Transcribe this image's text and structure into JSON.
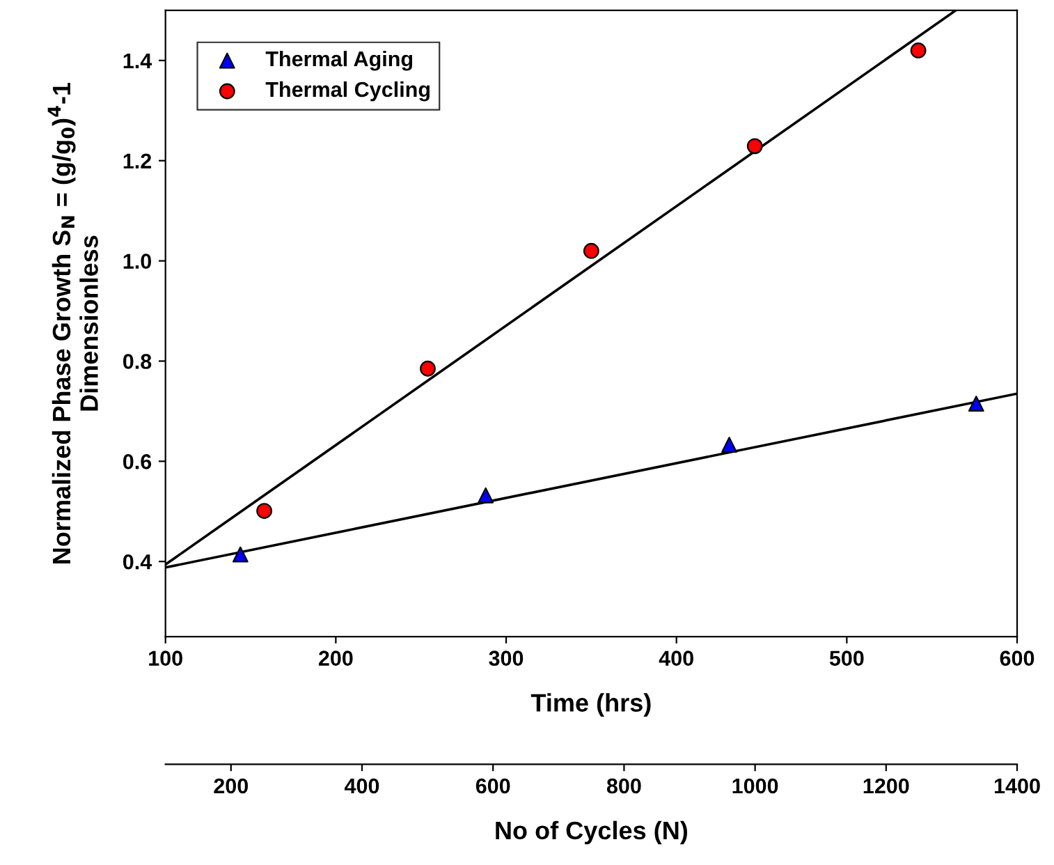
{
  "chart_data": {
    "type": "scatter",
    "xlabel": "Time (hrs)",
    "ylabel": "Normalized Phase Growth S$_{N}$ = (g/g$_{0}$)$^{4}$-1\nDimensionless",
    "x2label": "No of Cycles (N)",
    "xlim": [
      100,
      600
    ],
    "xticks": [
      100,
      200,
      300,
      400,
      500,
      600
    ],
    "ylim": [
      0.25,
      1.5
    ],
    "yticks": [
      {
        "value": 0.4,
        "label": "0.4"
      },
      {
        "value": 0.6,
        "label": "0.6"
      },
      {
        "value": 0.8,
        "label": "0.8"
      },
      {
        "value": 1.0,
        "label": "1.0"
      },
      {
        "value": 1.2,
        "label": "1.2"
      },
      {
        "value": 1.4,
        "label": "1.4"
      }
    ],
    "x2lim": [
      100,
      1400
    ],
    "x2ticks": [
      200,
      400,
      600,
      800,
      1000,
      1200,
      1400
    ],
    "legend": "top left",
    "grid": false,
    "series": [
      {
        "name": "Thermal Aging",
        "color": "#0000ff",
        "marker": "triangle",
        "x": [
          144,
          288,
          431,
          576
        ],
        "values": [
          0.414,
          0.532,
          0.633,
          0.715
        ]
      },
      {
        "name": "Thermal Cycling",
        "color": "#ff0000",
        "marker": "circle",
        "x": [
          158,
          254,
          350,
          446,
          542
        ],
        "values": [
          0.501,
          0.785,
          1.02,
          1.229,
          1.42
        ]
      },
      {
        "type": "line",
        "color": "#000000",
        "x": [
          100,
          600
        ],
        "values": [
          0.388,
          0.735
        ]
      },
      {
        "type": "line",
        "color": "#000000",
        "x": [
          100,
          564
        ],
        "values": [
          0.394,
          1.5
        ]
      }
    ]
  }
}
